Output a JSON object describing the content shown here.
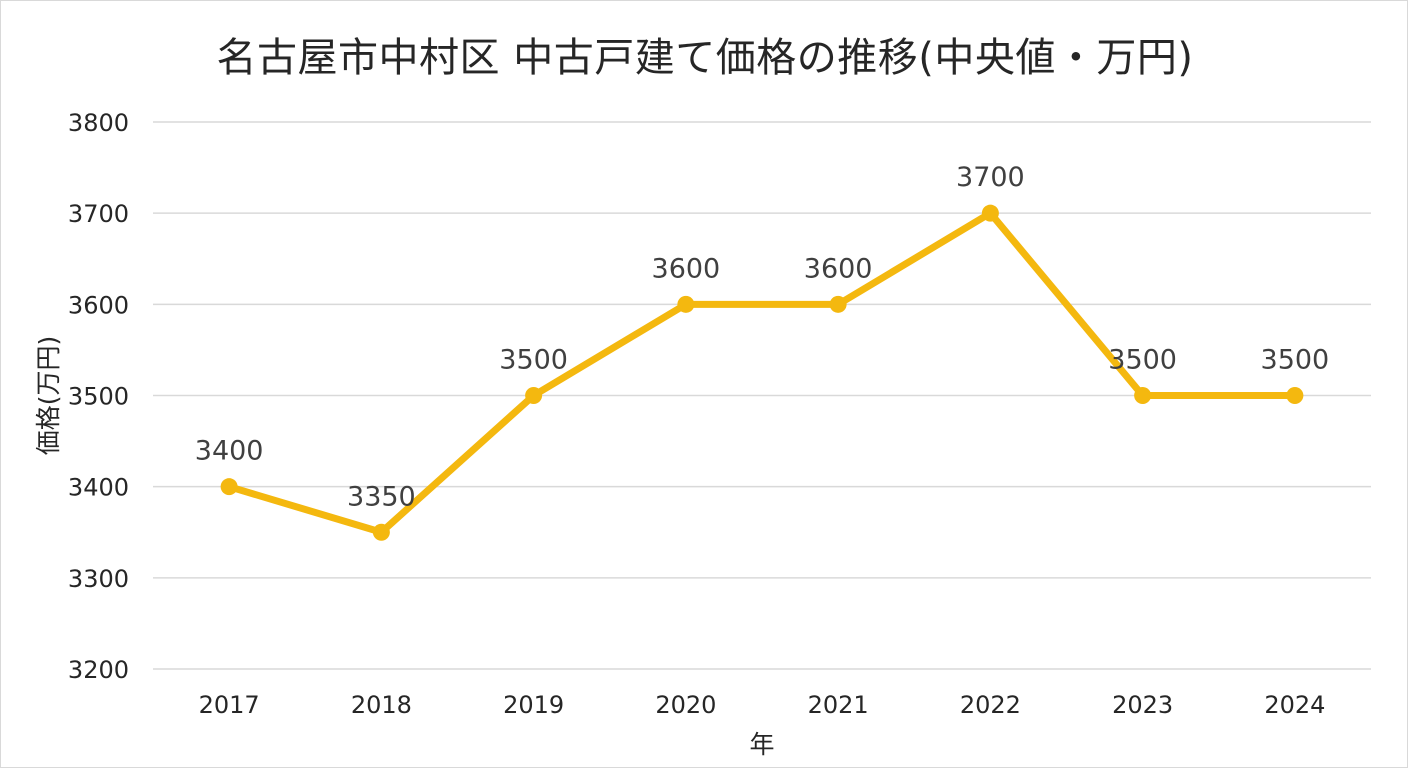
{
  "chart_data": {
    "type": "line",
    "title": "名古屋市中村区 中古戸建て価格の推移(中央値・万円)",
    "xlabel": "年",
    "ylabel": "価格(万円)",
    "categories": [
      "2017",
      "2018",
      "2019",
      "2020",
      "2021",
      "2022",
      "2023",
      "2024"
    ],
    "series": [
      {
        "values": [
          3400,
          3350,
          3500,
          3600,
          3600,
          3700,
          3500,
          3500
        ],
        "color": "#F4B80F"
      }
    ],
    "ylim": [
      3200,
      3800
    ],
    "yticks": [
      "3200",
      "3300",
      "3400",
      "3500",
      "3600",
      "3700",
      "3800"
    ],
    "data_labels": [
      "3400",
      "3350",
      "3500",
      "3600",
      "3600",
      "3700",
      "3500",
      "3500"
    ],
    "grid": true,
    "legend": "none",
    "gridline_color": "#d9d9d9"
  }
}
